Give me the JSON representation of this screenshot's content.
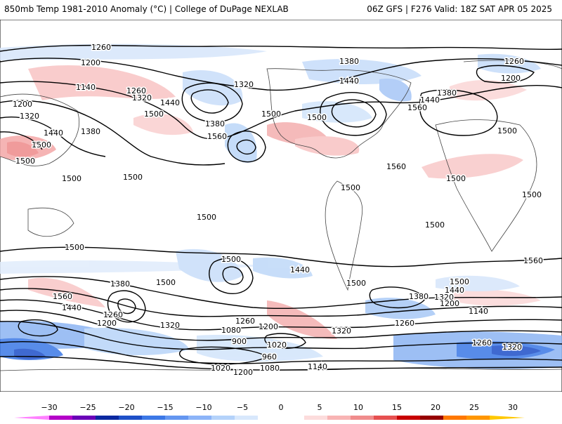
{
  "header": {
    "title_left": "850mb Temp 1981-2010 Anomaly (°C) | College of DuPage NEXLAB",
    "title_right": "06Z GFS | F276 Valid: 18Z SAT APR 05 2025"
  },
  "map": {
    "projection": "equirectangular (global)",
    "shading_field": "850mb temperature anomaly",
    "contour_field": "height contours",
    "contour_labels": [
      "1260",
      "1200",
      "1140",
      "1260",
      "1200",
      "1320",
      "1440",
      "1500",
      "1500",
      "1500",
      "1380",
      "1320",
      "1440",
      "1500",
      "1560",
      "1500",
      "1320",
      "1380",
      "1440",
      "1500",
      "1560",
      "1380",
      "1260",
      "1200",
      "1560",
      "1500",
      "1500",
      "1500",
      "1500",
      "1500",
      "1500",
      "1500",
      "1500",
      "1440",
      "1500",
      "1380",
      "1560",
      "1440",
      "1260",
      "1200",
      "1320",
      "1260",
      "1200",
      "1080",
      "900",
      "1020",
      "960",
      "1020",
      "1080",
      "1140",
      "1200",
      "1500",
      "1440",
      "1320",
      "1200",
      "1380",
      "1260",
      "1320",
      "1140",
      "1260",
      "1320",
      "1380",
      "1440",
      "1560",
      "1500",
      "1500"
    ]
  },
  "colorbar": {
    "ticks": [
      "−30",
      "−25",
      "−20",
      "−15",
      "−10",
      "−5",
      "0",
      "5",
      "10",
      "15",
      "20",
      "25",
      "30"
    ],
    "colors": [
      "#ff80ff",
      "#b400c8",
      "#6a00b8",
      "#0a28a0",
      "#1e50c8",
      "#3c78e6",
      "#6496f0",
      "#8cb4f8",
      "#b4d2fa",
      "#d8e8fc",
      "#ffffff",
      "#ffffff",
      "#fcdcdc",
      "#f8b4b4",
      "#f08c8c",
      "#e65050",
      "#c80000",
      "#960000",
      "#ff7800",
      "#ff9600",
      "#ffc800"
    ]
  }
}
